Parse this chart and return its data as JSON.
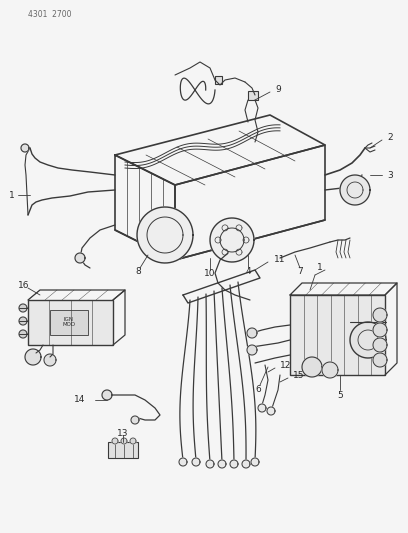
{
  "header_text": "4301  2700",
  "background_color": "#f5f5f5",
  "line_color": "#3a3a3a",
  "text_color": "#2a2a2a",
  "fig_width": 4.08,
  "fig_height": 5.33,
  "dpi": 100
}
